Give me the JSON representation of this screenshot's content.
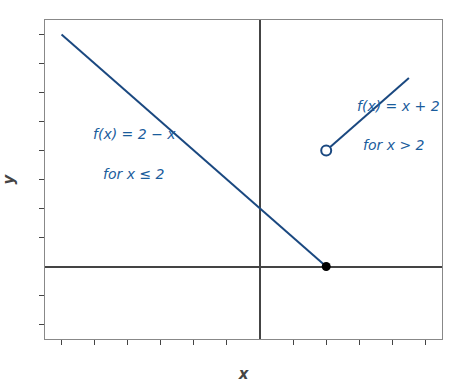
{
  "chart_data": {
    "type": "line",
    "xlabel": "x",
    "ylabel": "y",
    "xlim": [
      -6.5,
      5.5
    ],
    "ylim": [
      -2.5,
      8.5
    ],
    "xticks": [
      -6,
      -5,
      -4,
      -3,
      -2,
      -1,
      1,
      2,
      3,
      4,
      5
    ],
    "yticks": [
      -2,
      -1,
      1,
      2,
      3,
      4,
      5,
      6,
      7,
      8
    ],
    "tick_labels": false,
    "grid": false,
    "series": [
      {
        "type": "line",
        "color": "#1a4880",
        "x": [
          -6,
          2
        ],
        "values": [
          8,
          0
        ]
      },
      {
        "type": "line",
        "color": "#1a4880",
        "x": [
          2,
          4.5
        ],
        "values": [
          4,
          6.5
        ]
      },
      {
        "type": "scatter",
        "marker": "circle",
        "color": "#000000",
        "x": [
          2
        ],
        "values": [
          0
        ]
      },
      {
        "type": "scatter",
        "marker": "open circle",
        "color": "#1a4880",
        "x": [
          2
        ],
        "values": [
          4
        ]
      }
    ],
    "annotations": [
      "f(x) = 2 − x",
      "for x ≤ 2",
      "f(x) = x + 2",
      "for x > 2"
    ],
    "annotation_color": "#1a5c9c"
  }
}
